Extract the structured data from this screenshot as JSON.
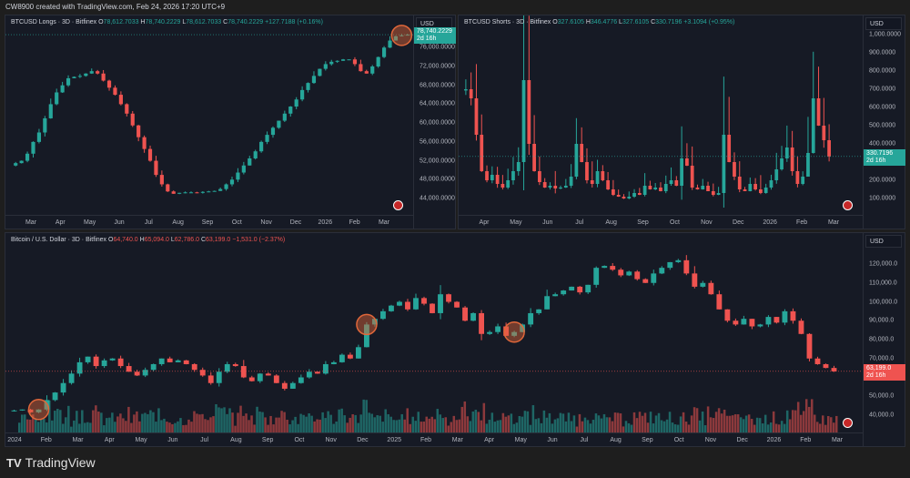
{
  "credit": "CW8900 created with TradingView.com, Feb 24, 2026 17:20 UTC+9",
  "brand": "TradingView",
  "colors": {
    "up": "#26a69a",
    "down": "#ef5350",
    "bg": "#161a25",
    "highlight": "#e0673a"
  },
  "panels": [
    {
      "id": "longs",
      "title": "BTCUSD Longs · 3D · Bitfinex",
      "o": "78,612.7033",
      "h": "78,740.2229",
      "l": "78,612.7033",
      "c": "78,740.2229",
      "chg": "+127.7188 (+0.16%)",
      "dir": "up",
      "currency": "USD",
      "price_label": "78,740.2229",
      "countdown": "2d 16h",
      "yticks": [
        "76,000.0000",
        "72,000.0000",
        "68,000.0000",
        "64,000.0000",
        "60,000.0000",
        "56,000.0000",
        "52,000.0000",
        "48,000.0000",
        "44,000.0000"
      ],
      "xticks": [
        "Mar",
        "Apr",
        "May",
        "Jun",
        "Jul",
        "Aug",
        "Sep",
        "Oct",
        "Nov",
        "Dec",
        "2026",
        "Feb",
        "Mar"
      ]
    },
    {
      "id": "shorts",
      "title": "BTCUSD Shorts · 3D · Bitfinex",
      "o": "327.6105",
      "h": "346.4776",
      "l": "327.6105",
      "c": "330.7196",
      "chg": "+3.1094 (+0.95%)",
      "dir": "up",
      "currency": "USD",
      "price_label": "330.7196",
      "countdown": "2d 16h",
      "yticks": [
        "1,000.0000",
        "900.0000",
        "800.0000",
        "700.0000",
        "600.0000",
        "500.0000",
        "400.0000",
        "200.0000",
        "100.0000"
      ],
      "xticks": [
        "Apr",
        "May",
        "Jun",
        "Jul",
        "Aug",
        "Sep",
        "Oct",
        "Nov",
        "Dec",
        "2026",
        "Feb",
        "Mar"
      ]
    },
    {
      "id": "btc",
      "title": "Bitcoin / U.S. Dollar · 3D · Bitfinex",
      "o": "64,740.0",
      "h": "65,094.0",
      "l": "62,786.0",
      "c": "63,199.0",
      "chg": "−1,531.0 (−2.37%)",
      "dir": "down",
      "currency": "USD",
      "price_label": "63,199.0",
      "countdown": "2d 16h",
      "yticks": [
        "120,000.0",
        "110,000.0",
        "100,000.0",
        "90,000.0",
        "80,000.0",
        "70,000.0",
        "50,000.0",
        "40,000.0"
      ],
      "xticks": [
        "2024",
        "Feb",
        "Mar",
        "Apr",
        "May",
        "Jun",
        "Jul",
        "Aug",
        "Sep",
        "Oct",
        "Nov",
        "Dec",
        "2025",
        "Feb",
        "Mar",
        "Apr",
        "May",
        "Jun",
        "Jul",
        "Aug",
        "Sep",
        "Oct",
        "Nov",
        "Dec",
        "2026",
        "Feb",
        "Mar"
      ]
    }
  ],
  "chart_data": [
    {
      "type": "candlestick",
      "series": "BTCUSD Longs",
      "closes": [
        51500,
        52000,
        53500,
        56000,
        58000,
        61000,
        64000,
        66500,
        68000,
        69500,
        69800,
        70000,
        70500,
        71000,
        70500,
        69000,
        67500,
        66000,
        64000,
        62000,
        59500,
        57000,
        54500,
        52000,
        49000,
        47000,
        45500,
        45000,
        45200,
        45300,
        45300,
        45200,
        45400,
        45500,
        45600,
        46000,
        47000,
        48000,
        49500,
        51000,
        52500,
        54000,
        56000,
        57500,
        59000,
        60500,
        62000,
        63500,
        65000,
        67000,
        68500,
        70000,
        71500,
        72500,
        73000,
        73200,
        73500,
        73500,
        72500,
        71000,
        70500,
        72000,
        74000,
        76000,
        77500,
        78400,
        78600,
        78740.2229
      ],
      "ylim": [
        42000,
        78740
      ]
    },
    {
      "type": "candlestick",
      "series": "BTCUSD Shorts",
      "closes": [
        700000,
        650000,
        450000,
        250000,
        200000,
        230000,
        180000,
        160000,
        200000,
        250000,
        300000,
        750000,
        400000,
        250000,
        190000,
        160000,
        170000,
        155000,
        160000,
        170000,
        220000,
        400000,
        300000,
        200000,
        180000,
        250000,
        200000,
        150000,
        120000,
        110000,
        100000,
        110000,
        130000,
        120000,
        170000,
        150000,
        160000,
        140000,
        180000,
        200000,
        170000,
        320000,
        280000,
        160000,
        150000,
        170000,
        140000,
        120000,
        130000,
        450000,
        300000,
        220000,
        150000,
        140000,
        180000,
        150000,
        130000,
        160000,
        200000,
        260000,
        320000,
        380000,
        250000,
        180000,
        220000,
        350000,
        650000,
        500000,
        420000,
        330719.6
      ],
      "ylim": [
        0,
        1050000
      ]
    },
    {
      "type": "candlestick",
      "series": "Bitcoin / U.S. Dollar",
      "closes": [
        42500,
        43000,
        41500,
        43000,
        48000,
        52000,
        57000,
        62000,
        68000,
        71000,
        66000,
        69000,
        70000,
        66000,
        63000,
        61000,
        64000,
        67000,
        70000,
        68000,
        69000,
        67000,
        64000,
        61000,
        57000,
        63000,
        67000,
        66000,
        60000,
        58000,
        62000,
        61000,
        57000,
        54000,
        57000,
        60000,
        63000,
        62000,
        67000,
        68000,
        72000,
        70000,
        76000,
        88000,
        91000,
        95000,
        98000,
        100000,
        96000,
        102000,
        99000,
        94000,
        104000,
        100000,
        97000,
        90000,
        94000,
        83000,
        84000,
        87000,
        82000,
        84000,
        88000,
        94000,
        96000,
        103000,
        104000,
        106000,
        108000,
        105000,
        109000,
        118000,
        119000,
        117000,
        114000,
        116000,
        112000,
        110000,
        115000,
        118000,
        121000,
        122000,
        115000,
        108000,
        110000,
        104000,
        96000,
        90000,
        88000,
        91000,
        87000,
        88000,
        92000,
        89000,
        95000,
        90000,
        83000,
        70000,
        67000,
        65000,
        63199
      ],
      "ylim": [
        35000,
        127000
      ]
    }
  ]
}
